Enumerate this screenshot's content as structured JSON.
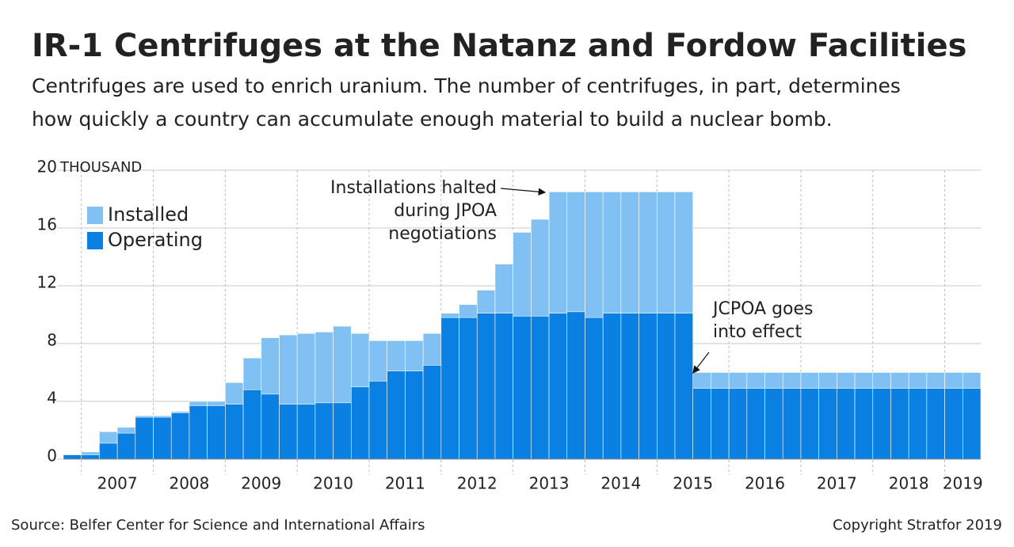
{
  "chart_data": {
    "type": "overlap_bar",
    "title": "IR-1 Centrifuges at the Natanz and Fordow Facilities",
    "subtitle": [
      "Centrifuges are used to enrich uranium. The number of centrifuges, in part, determines",
      "how quickly a country can accumulate enough material to build a nuclear bomb."
    ],
    "y_unit": "THOUSAND",
    "categories": [
      null,
      null,
      null,
      null,
      null,
      null,
      null,
      null,
      null,
      null,
      null,
      null,
      null,
      null,
      null,
      null,
      null,
      null,
      null,
      null,
      null,
      null,
      null,
      null,
      null,
      null,
      null,
      null,
      null,
      null,
      null,
      null,
      null,
      null,
      null,
      null,
      null,
      null,
      null,
      null,
      null,
      null,
      null,
      null,
      null,
      null,
      null,
      null,
      null,
      null,
      null
    ],
    "year_labels": [
      "2007",
      "2008",
      "2009",
      "2010",
      "2011",
      "2012",
      "2013",
      "2014",
      "2015",
      "2016",
      "2017",
      "2018",
      "2019"
    ],
    "series": [
      {
        "name": "Installed",
        "color": "#80c0f3",
        "values": [
          0.3,
          0.5,
          1.9,
          2.2,
          3.0,
          3.0,
          3.3,
          4.0,
          4.0,
          5.3,
          7.0,
          8.4,
          8.6,
          8.7,
          8.8,
          9.2,
          8.7,
          8.2,
          8.2,
          8.2,
          8.7,
          10.1,
          10.7,
          11.7,
          13.5,
          15.7,
          16.6,
          18.5,
          18.5,
          18.5,
          18.5,
          18.5,
          18.5,
          18.5,
          18.5,
          6.0,
          6.0,
          6.0,
          6.0,
          6.0,
          6.0,
          6.0,
          6.0,
          6.0,
          6.0,
          6.0,
          6.0,
          6.0,
          6.0,
          6.0,
          6.0
        ]
      },
      {
        "name": "Operating",
        "color": "#0a80e2",
        "values": [
          0.3,
          0.3,
          1.1,
          1.8,
          2.9,
          2.9,
          3.2,
          3.7,
          3.7,
          3.8,
          4.8,
          4.5,
          3.8,
          3.8,
          3.9,
          3.9,
          5.0,
          5.4,
          6.1,
          6.1,
          6.5,
          9.8,
          9.8,
          10.1,
          10.1,
          9.9,
          9.9,
          10.1,
          10.2,
          9.8,
          10.1,
          10.1,
          10.1,
          10.1,
          10.1,
          4.9,
          4.9,
          4.9,
          4.9,
          4.9,
          4.9,
          4.9,
          4.9,
          4.9,
          4.9,
          4.9,
          4.9,
          4.9,
          4.9,
          4.9,
          4.9
        ]
      }
    ],
    "ylim": [
      0,
      20
    ],
    "yticks": [
      0,
      4,
      8,
      12,
      16,
      20
    ],
    "grid": true,
    "legend": "top-left",
    "annotations": [
      {
        "lines": [
          "Installations halted",
          "during JPOA",
          "negotiations"
        ]
      },
      {
        "lines": [
          "JCPOA goes",
          "into effect"
        ]
      }
    ],
    "source": "Source: Belfer Center for Science and International Affairs",
    "copyright": "Copyright Stratfor 2019"
  }
}
